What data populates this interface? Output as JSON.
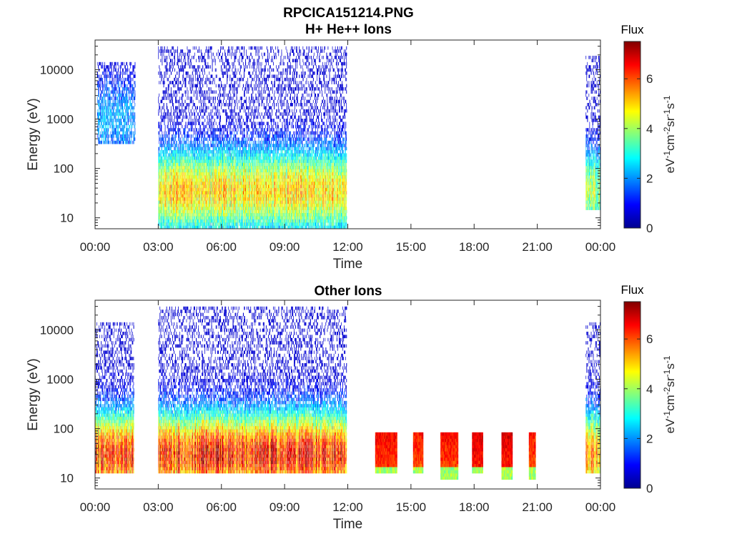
{
  "figure": {
    "title_line1": "RPCICA151214.PNG",
    "title_line2": "H+ He++ Ions"
  },
  "chart_data": [
    {
      "type": "heatmap",
      "title": "H+ He++ Ions",
      "xlabel": "Time",
      "ylabel": "Energy (eV)",
      "y_scale": "log",
      "xlim": [
        0,
        24
      ],
      "ylim": [
        6,
        40000
      ],
      "x_ticks": [
        0,
        3,
        6,
        9,
        12,
        15,
        18,
        21,
        24
      ],
      "x_tick_labels": [
        "00:00",
        "03:00",
        "06:00",
        "09:00",
        "12:00",
        "15:00",
        "18:00",
        "21:00",
        "00:00"
      ],
      "y_ticks": [
        10,
        100,
        1000,
        10000
      ],
      "y_tick_labels": [
        "10",
        "100",
        "1000",
        "10000"
      ],
      "colorbar": {
        "label_title": "Flux",
        "unit_label": "eV⁻¹cm⁻²sr⁻¹s⁻¹",
        "range": [
          0,
          7.5
        ],
        "ticks": [
          0,
          2,
          4,
          6
        ],
        "tick_labels": [
          "0",
          "2",
          "4",
          "6"
        ],
        "colormap": "jet"
      },
      "activity_intervals": [
        {
          "start": 0.1,
          "end": 1.9,
          "emin": 300,
          "emax": 15000,
          "peak_energy": 1000,
          "peak_flux": 2.2
        },
        {
          "start": 3.0,
          "end": 11.95,
          "emin": 6,
          "emax": 30000,
          "peak_energy": 35,
          "peak_flux": 5.0
        },
        {
          "start": 23.3,
          "end": 24.0,
          "emin": 15,
          "emax": 20000,
          "peak_energy": 35,
          "peak_flux": 4.0
        }
      ]
    },
    {
      "type": "heatmap",
      "title": "Other Ions",
      "xlabel": "Time",
      "ylabel": "Energy (eV)",
      "y_scale": "log",
      "xlim": [
        0,
        24
      ],
      "ylim": [
        6,
        40000
      ],
      "x_ticks": [
        0,
        3,
        6,
        9,
        12,
        15,
        18,
        21,
        24
      ],
      "x_tick_labels": [
        "00:00",
        "03:00",
        "06:00",
        "09:00",
        "12:00",
        "15:00",
        "18:00",
        "21:00",
        "00:00"
      ],
      "y_ticks": [
        10,
        100,
        1000,
        10000
      ],
      "y_tick_labels": [
        "10",
        "100",
        "1000",
        "10000"
      ],
      "colorbar": {
        "label_title": "Flux",
        "unit_label": "eV⁻¹cm⁻²sr⁻¹s⁻¹",
        "range": [
          0,
          7.5
        ],
        "ticks": [
          0,
          2,
          4,
          6
        ],
        "tick_labels": [
          "0",
          "2",
          "4",
          "6"
        ],
        "colormap": "jet"
      },
      "activity_intervals": [
        {
          "start": 0.0,
          "end": 1.85,
          "emin": 12,
          "emax": 15000,
          "peak_energy": 30,
          "peak_flux": 6.3
        },
        {
          "start": 3.0,
          "end": 11.95,
          "emin": 12,
          "emax": 30000,
          "peak_energy": 30,
          "peak_flux": 6.5
        },
        {
          "start": 23.3,
          "end": 24.0,
          "emin": 12,
          "emax": 15000,
          "peak_energy": 30,
          "peak_flux": 5.5
        }
      ],
      "bursts": [
        {
          "start": 13.3,
          "end": 14.3,
          "emin": 12,
          "emax": 80,
          "peak_flux": 6.6
        },
        {
          "start": 15.1,
          "end": 15.55,
          "emin": 12,
          "emax": 80,
          "peak_flux": 6.4
        },
        {
          "start": 16.4,
          "end": 17.2,
          "emin": 9,
          "emax": 80,
          "peak_flux": 6.5
        },
        {
          "start": 17.9,
          "end": 18.4,
          "emin": 12,
          "emax": 80,
          "peak_flux": 6.8
        },
        {
          "start": 19.3,
          "end": 19.8,
          "emin": 9,
          "emax": 80,
          "peak_flux": 6.8
        },
        {
          "start": 20.6,
          "end": 20.9,
          "emin": 9,
          "emax": 80,
          "peak_flux": 6.4
        }
      ]
    }
  ]
}
